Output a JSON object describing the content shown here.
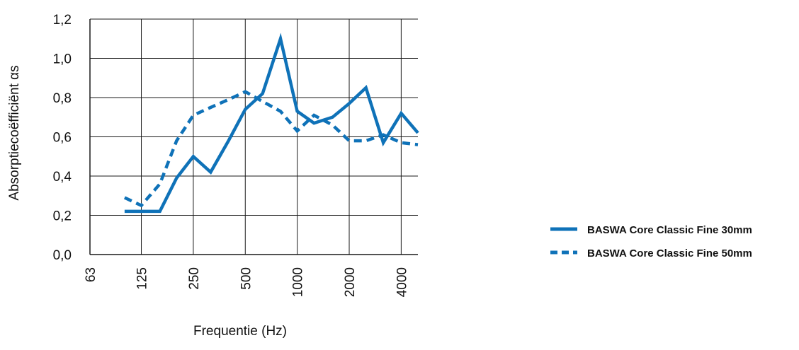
{
  "chart_data": {
    "type": "line",
    "xlabel": "Frequentie (Hz)",
    "ylabel": "Absorptiecoëfficiënt αs",
    "x_scale": "log",
    "xlim": [
      63,
      5000
    ],
    "ylim": [
      0,
      1.2
    ],
    "y_ticks": [
      "0,0",
      "0,2",
      "0,4",
      "0,6",
      "0,8",
      "1,0",
      "1,2"
    ],
    "y_tick_values": [
      0,
      0.2,
      0.4,
      0.6,
      0.8,
      1.0,
      1.2
    ],
    "x_ticks": [
      "63",
      "125",
      "250",
      "500",
      "1000",
      "2000",
      "4000"
    ],
    "x_tick_values": [
      63,
      125,
      250,
      500,
      1000,
      2000,
      4000
    ],
    "grid": true,
    "legend_position": "right",
    "x": [
      100,
      125,
      160,
      200,
      250,
      315,
      400,
      500,
      630,
      800,
      1000,
      1250,
      1600,
      2000,
      2500,
      3150,
      4000,
      5000
    ],
    "series": [
      {
        "name": "BASWA Core Classic Fine 30mm",
        "style": "solid",
        "color": "#0f72b8",
        "values": [
          0.22,
          0.22,
          0.22,
          0.39,
          0.5,
          0.42,
          0.58,
          0.74,
          0.82,
          1.1,
          0.73,
          0.67,
          0.7,
          0.77,
          0.85,
          0.57,
          0.72,
          0.62
        ]
      },
      {
        "name": "BASWA Core Classic Fine 50mm",
        "style": "dashed",
        "color": "#0f72b8",
        "values": [
          0.29,
          0.25,
          0.36,
          0.58,
          0.71,
          0.75,
          0.79,
          0.83,
          0.78,
          0.73,
          0.63,
          0.71,
          0.66,
          0.58,
          0.58,
          0.61,
          0.57,
          0.56
        ]
      }
    ]
  }
}
